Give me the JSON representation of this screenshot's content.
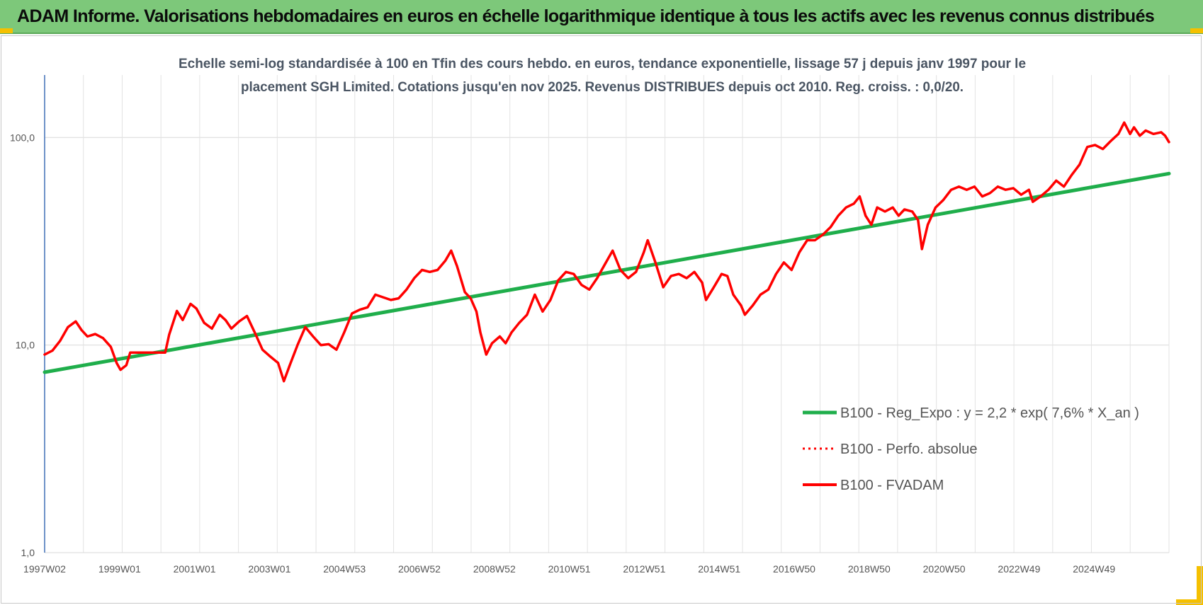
{
  "banner": {
    "title": "ADAM Informe. Valorisations hebdomadaires en euros en échelle logarithmique identique à tous les actifs avec les revenus connus distribués",
    "background": "#7dc87a"
  },
  "chart_data": {
    "type": "line",
    "title_lines": [
      "Echelle semi-log standardisée à 100 en Tfin des cours hebdo. en euros, tendance exponentielle, lissage 57 j depuis janv 1997 pour le",
      "placement SGH Limited. Cotations jusqu'en nov 2025. Revenus DISTRIBUES depuis oct 2010. Reg. croiss. : 0,0/20."
    ],
    "y_scale": "log",
    "ylim": [
      1,
      200
    ],
    "y_ticks": [
      {
        "value": 1,
        "label": "1,0"
      },
      {
        "value": 10,
        "label": "10,0"
      },
      {
        "value": 100,
        "label": "100,0"
      }
    ],
    "x_range": [
      1997.0,
      2025.9
    ],
    "x_tick_labels": [
      "1997W02",
      "1999W01",
      "2001W01",
      "2003W01",
      "2004W53",
      "2006W52",
      "2008W52",
      "2010W51",
      "2012W51",
      "2014W51",
      "2016W50",
      "2018W50",
      "2020W50",
      "2022W49",
      "2024W49"
    ],
    "grid": "vertical",
    "legend_position": "right",
    "series": [
      {
        "name": "B100 - Reg_Expo : y = 2,2 * exp( 7,6% *  X_an )",
        "color": "#1fae4b",
        "style": "solid",
        "points": [
          [
            1997.0,
            7.4
          ],
          [
            2025.9,
            67.0
          ]
        ]
      },
      {
        "name": "B100 - Perfo. absolue",
        "color": "#ff0000",
        "style": "dotted",
        "points": []
      },
      {
        "name": "B100 - FVADAM",
        "color": "#ff0000",
        "style": "solid",
        "points": [
          [
            1997.0,
            9.0
          ],
          [
            1997.2,
            9.4
          ],
          [
            1997.4,
            10.5
          ],
          [
            1997.6,
            12.2
          ],
          [
            1997.8,
            13.0
          ],
          [
            1997.95,
            11.8
          ],
          [
            1998.1,
            11.0
          ],
          [
            1998.3,
            11.3
          ],
          [
            1998.5,
            10.8
          ],
          [
            1998.7,
            9.8
          ],
          [
            1998.85,
            8.2
          ],
          [
            1998.95,
            7.6
          ],
          [
            1999.1,
            8.0
          ],
          [
            1999.2,
            9.2
          ],
          [
            1999.5,
            9.2
          ],
          [
            2000.0,
            9.2
          ],
          [
            2000.1,
            9.2
          ],
          [
            2000.2,
            11.2
          ],
          [
            2000.4,
            14.6
          ],
          [
            2000.55,
            13.2
          ],
          [
            2000.75,
            15.8
          ],
          [
            2000.9,
            15.0
          ],
          [
            2001.1,
            12.8
          ],
          [
            2001.3,
            12.0
          ],
          [
            2001.5,
            14.0
          ],
          [
            2001.65,
            13.2
          ],
          [
            2001.8,
            12.0
          ],
          [
            2002.0,
            13.0
          ],
          [
            2002.2,
            13.8
          ],
          [
            2002.4,
            11.5
          ],
          [
            2002.6,
            9.5
          ],
          [
            2002.8,
            8.8
          ],
          [
            2003.0,
            8.2
          ],
          [
            2003.15,
            6.7
          ],
          [
            2003.3,
            8.0
          ],
          [
            2003.5,
            10.0
          ],
          [
            2003.7,
            12.2
          ],
          [
            2003.9,
            11.0
          ],
          [
            2004.1,
            10.0
          ],
          [
            2004.3,
            10.1
          ],
          [
            2004.5,
            9.5
          ],
          [
            2004.7,
            11.5
          ],
          [
            2004.9,
            14.2
          ],
          [
            2005.1,
            14.8
          ],
          [
            2005.3,
            15.2
          ],
          [
            2005.5,
            17.5
          ],
          [
            2005.7,
            17.0
          ],
          [
            2005.9,
            16.5
          ],
          [
            2006.1,
            16.8
          ],
          [
            2006.3,
            18.5
          ],
          [
            2006.5,
            21.0
          ],
          [
            2006.7,
            23.0
          ],
          [
            2006.9,
            22.5
          ],
          [
            2007.1,
            23.0
          ],
          [
            2007.3,
            25.5
          ],
          [
            2007.45,
            28.5
          ],
          [
            2007.6,
            24.0
          ],
          [
            2007.8,
            18.0
          ],
          [
            2007.95,
            16.8
          ],
          [
            2008.1,
            14.5
          ],
          [
            2008.2,
            11.5
          ],
          [
            2008.35,
            9.0
          ],
          [
            2008.5,
            10.2
          ],
          [
            2008.7,
            11.0
          ],
          [
            2008.85,
            10.2
          ],
          [
            2009.0,
            11.5
          ],
          [
            2009.2,
            12.8
          ],
          [
            2009.4,
            14.0
          ],
          [
            2009.6,
            17.5
          ],
          [
            2009.8,
            14.5
          ],
          [
            2010.0,
            16.5
          ],
          [
            2010.2,
            20.5
          ],
          [
            2010.4,
            22.5
          ],
          [
            2010.6,
            22.0
          ],
          [
            2010.8,
            19.5
          ],
          [
            2011.0,
            18.5
          ],
          [
            2011.2,
            21.0
          ],
          [
            2011.4,
            24.5
          ],
          [
            2011.6,
            28.5
          ],
          [
            2011.8,
            23.0
          ],
          [
            2012.0,
            21.0
          ],
          [
            2012.2,
            22.5
          ],
          [
            2012.4,
            28.0
          ],
          [
            2012.5,
            32.0
          ],
          [
            2012.7,
            25.0
          ],
          [
            2012.9,
            19.0
          ],
          [
            2013.1,
            21.5
          ],
          [
            2013.3,
            22.0
          ],
          [
            2013.5,
            21.0
          ],
          [
            2013.7,
            22.5
          ],
          [
            2013.9,
            20.0
          ],
          [
            2014.0,
            16.5
          ],
          [
            2014.2,
            19.0
          ],
          [
            2014.4,
            22.0
          ],
          [
            2014.55,
            21.5
          ],
          [
            2014.7,
            17.5
          ],
          [
            2014.9,
            15.5
          ],
          [
            2015.0,
            14.0
          ],
          [
            2015.2,
            15.5
          ],
          [
            2015.4,
            17.5
          ],
          [
            2015.6,
            18.5
          ],
          [
            2015.8,
            22.0
          ],
          [
            2016.0,
            25.0
          ],
          [
            2016.2,
            23.0
          ],
          [
            2016.4,
            28.0
          ],
          [
            2016.6,
            32.0
          ],
          [
            2016.8,
            32.0
          ],
          [
            2017.0,
            34.0
          ],
          [
            2017.2,
            37.0
          ],
          [
            2017.4,
            42.0
          ],
          [
            2017.6,
            46.0
          ],
          [
            2017.8,
            48.0
          ],
          [
            2017.95,
            52.0
          ],
          [
            2018.1,
            42.0
          ],
          [
            2018.25,
            38.0
          ],
          [
            2018.4,
            46.0
          ],
          [
            2018.6,
            44.0
          ],
          [
            2018.8,
            46.0
          ],
          [
            2018.95,
            42.0
          ],
          [
            2019.1,
            45.0
          ],
          [
            2019.3,
            44.0
          ],
          [
            2019.45,
            40.0
          ],
          [
            2019.55,
            29.0
          ],
          [
            2019.7,
            38.0
          ],
          [
            2019.9,
            46.0
          ],
          [
            2020.1,
            50.0
          ],
          [
            2020.3,
            56.0
          ],
          [
            2020.5,
            58.0
          ],
          [
            2020.7,
            56.0
          ],
          [
            2020.9,
            58.0
          ],
          [
            2021.1,
            52.0
          ],
          [
            2021.3,
            54.0
          ],
          [
            2021.5,
            58.0
          ],
          [
            2021.7,
            56.0
          ],
          [
            2021.9,
            57.0
          ],
          [
            2022.1,
            53.0
          ],
          [
            2022.3,
            56.0
          ],
          [
            2022.4,
            49.0
          ],
          [
            2022.6,
            52.0
          ],
          [
            2022.8,
            56.0
          ],
          [
            2023.0,
            62.0
          ],
          [
            2023.2,
            58.0
          ],
          [
            2023.4,
            66.0
          ],
          [
            2023.6,
            74.0
          ],
          [
            2023.8,
            90.0
          ],
          [
            2024.0,
            92.0
          ],
          [
            2024.2,
            88.0
          ],
          [
            2024.4,
            96.0
          ],
          [
            2024.6,
            104.0
          ],
          [
            2024.75,
            118.0
          ],
          [
            2024.9,
            104.0
          ],
          [
            2025.0,
            112.0
          ],
          [
            2025.15,
            102.0
          ],
          [
            2025.3,
            108.0
          ],
          [
            2025.5,
            104.0
          ],
          [
            2025.7,
            106.0
          ],
          [
            2025.8,
            102.0
          ],
          [
            2025.9,
            95.0
          ]
        ]
      }
    ]
  }
}
